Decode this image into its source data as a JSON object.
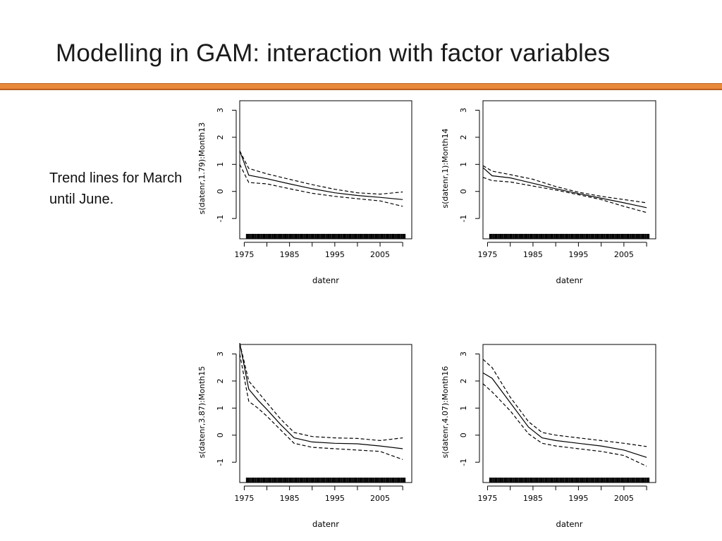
{
  "slide": {
    "title": "Modelling in GAM: interaction with factor variables",
    "side_text": "Trend lines for March until June."
  },
  "colors": {
    "accent_bar": "#e8883a",
    "line": "#000000"
  },
  "chart_data": [
    {
      "type": "line",
      "xlabel": "datenr",
      "ylabel": "s(datenr,1.79):Month13",
      "xticks": [
        1975,
        1985,
        1995,
        2005
      ],
      "yticks": [
        -1,
        0,
        1,
        2,
        3
      ],
      "xlim": [
        1974,
        2012
      ],
      "ylim": [
        -1.75,
        3.35
      ],
      "x": [
        1974,
        1976,
        1980,
        1985,
        1990,
        1995,
        2000,
        2005,
        2010
      ],
      "series": [
        {
          "values": [
            1.5,
            0.6,
            0.47,
            0.28,
            0.1,
            -0.05,
            -0.15,
            -0.22,
            -0.3
          ],
          "style": "solid"
        },
        {
          "values": [
            1.5,
            0.85,
            0.65,
            0.45,
            0.25,
            0.08,
            -0.05,
            -0.1,
            -0.02
          ],
          "style": "dashed"
        },
        {
          "values": [
            1.0,
            0.33,
            0.28,
            0.1,
            -0.07,
            -0.18,
            -0.27,
            -0.35,
            -0.55
          ],
          "style": "dashed"
        }
      ]
    },
    {
      "type": "line",
      "xlabel": "datenr",
      "ylabel": "s(datenr,1):Month14",
      "xticks": [
        1975,
        1985,
        1995,
        2005
      ],
      "yticks": [
        -1,
        0,
        1,
        2,
        3
      ],
      "xlim": [
        1974,
        2012
      ],
      "ylim": [
        -1.75,
        3.35
      ],
      "x": [
        1974,
        1976,
        1980,
        1985,
        1990,
        1995,
        2000,
        2005,
        2010
      ],
      "series": [
        {
          "values": [
            0.88,
            0.58,
            0.5,
            0.3,
            0.1,
            -0.08,
            -0.25,
            -0.42,
            -0.6
          ],
          "style": "solid"
        },
        {
          "values": [
            0.95,
            0.75,
            0.62,
            0.45,
            0.18,
            -0.03,
            -0.18,
            -0.3,
            -0.42
          ],
          "style": "dashed"
        },
        {
          "values": [
            0.52,
            0.4,
            0.35,
            0.2,
            0.05,
            -0.12,
            -0.3,
            -0.55,
            -0.78
          ],
          "style": "dashed"
        }
      ]
    },
    {
      "type": "line",
      "xlabel": "datenr",
      "ylabel": "s(datenr,3.87):Month15",
      "xticks": [
        1975,
        1985,
        1995,
        2005
      ],
      "yticks": [
        -1,
        0,
        1,
        2,
        3
      ],
      "xlim": [
        1974,
        2012
      ],
      "ylim": [
        -1.75,
        3.35
      ],
      "x": [
        1974,
        1976,
        1978,
        1980,
        1983,
        1986,
        1990,
        1995,
        2000,
        2005,
        2010
      ],
      "series": [
        {
          "values": [
            3.4,
            1.7,
            1.3,
            0.95,
            0.4,
            -0.1,
            -0.25,
            -0.3,
            -0.32,
            -0.4,
            -0.5
          ],
          "style": "solid"
        },
        {
          "values": [
            3.4,
            2.0,
            1.6,
            1.2,
            0.6,
            0.1,
            -0.05,
            -0.1,
            -0.12,
            -0.2,
            -0.1
          ],
          "style": "dashed"
        },
        {
          "values": [
            3.0,
            1.25,
            1.0,
            0.7,
            0.2,
            -0.3,
            -0.45,
            -0.5,
            -0.55,
            -0.6,
            -0.9
          ],
          "style": "dashed"
        }
      ]
    },
    {
      "type": "line",
      "xlabel": "datenr",
      "ylabel": "s(datenr,4.07):Month16",
      "xticks": [
        1975,
        1985,
        1995,
        2005
      ],
      "yticks": [
        -1,
        0,
        1,
        2,
        3
      ],
      "xlim": [
        1974,
        2012
      ],
      "ylim": [
        -1.75,
        3.35
      ],
      "x": [
        1974,
        1976,
        1980,
        1984,
        1987,
        1990,
        1995,
        2000,
        2005,
        2010
      ],
      "series": [
        {
          "values": [
            2.3,
            2.1,
            1.2,
            0.3,
            -0.1,
            -0.2,
            -0.3,
            -0.4,
            -0.55,
            -0.82
          ],
          "style": "solid"
        },
        {
          "values": [
            2.8,
            2.5,
            1.4,
            0.5,
            0.1,
            0.0,
            -0.1,
            -0.2,
            -0.3,
            -0.42
          ],
          "style": "dashed"
        },
        {
          "values": [
            1.9,
            1.6,
            0.9,
            0.05,
            -0.3,
            -0.4,
            -0.5,
            -0.6,
            -0.75,
            -1.15
          ],
          "style": "dashed"
        }
      ]
    }
  ]
}
